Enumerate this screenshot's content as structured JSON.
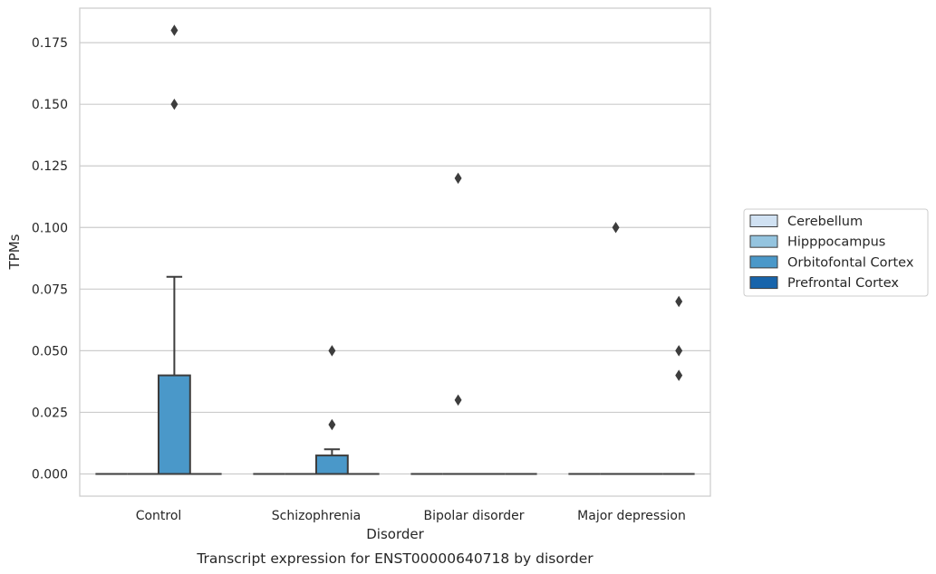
{
  "chart_data": {
    "type": "box",
    "xlabel": "Disorder",
    "ylabel": "TPMs",
    "caption": "Transcript expression for ENST00000640718 by disorder",
    "categories": [
      "Control",
      "Schizophrenia",
      "Bipolar disorder",
      "Major depression"
    ],
    "ylim": [
      -0.009,
      0.189
    ],
    "yticks": [
      0.0,
      0.025,
      0.05,
      0.075,
      0.1,
      0.125,
      0.15,
      0.175
    ],
    "ytick_labels": [
      "0.000",
      "0.025",
      "0.050",
      "0.075",
      "0.100",
      "0.125",
      "0.150",
      "0.175"
    ],
    "grid": true,
    "legend": {
      "placement": "right",
      "entries": [
        {
          "name": "Cerebellum",
          "color": "#d0e1f2"
        },
        {
          "name": "Hipppocampus",
          "color": "#94c4df"
        },
        {
          "name": "Orbitofontal Cortex",
          "color": "#4a98c9"
        },
        {
          "name": "Prefrontal Cortex",
          "color": "#1764ab"
        }
      ]
    },
    "groups": [
      {
        "category": "Control",
        "boxes": [
          {
            "series": "Cerebellum",
            "q1": 0,
            "median": 0,
            "q3": 0,
            "whisker_low": 0,
            "whisker_high": 0,
            "outliers": []
          },
          {
            "series": "Hipppocampus",
            "q1": 0,
            "median": 0,
            "q3": 0,
            "whisker_low": 0,
            "whisker_high": 0,
            "outliers": []
          },
          {
            "series": "Orbitofontal Cortex",
            "q1": 0,
            "median": 0,
            "q3": 0.04,
            "whisker_low": 0,
            "whisker_high": 0.08,
            "outliers": [
              0.15,
              0.18
            ]
          },
          {
            "series": "Prefrontal Cortex",
            "q1": 0,
            "median": 0,
            "q3": 0,
            "whisker_low": 0,
            "whisker_high": 0,
            "outliers": []
          }
        ]
      },
      {
        "category": "Schizophrenia",
        "boxes": [
          {
            "series": "Cerebellum",
            "q1": 0,
            "median": 0,
            "q3": 0,
            "whisker_low": 0,
            "whisker_high": 0,
            "outliers": []
          },
          {
            "series": "Hipppocampus",
            "q1": 0,
            "median": 0,
            "q3": 0,
            "whisker_low": 0,
            "whisker_high": 0,
            "outliers": []
          },
          {
            "series": "Orbitofontal Cortex",
            "q1": 0,
            "median": 0,
            "q3": 0.0075,
            "whisker_low": 0,
            "whisker_high": 0.01,
            "outliers": [
              0.02,
              0.05
            ]
          },
          {
            "series": "Prefrontal Cortex",
            "q1": 0,
            "median": 0,
            "q3": 0,
            "whisker_low": 0,
            "whisker_high": 0,
            "outliers": []
          }
        ]
      },
      {
        "category": "Bipolar disorder",
        "boxes": [
          {
            "series": "Cerebellum",
            "q1": 0,
            "median": 0,
            "q3": 0,
            "whisker_low": 0,
            "whisker_high": 0,
            "outliers": []
          },
          {
            "series": "Hipppocampus",
            "q1": 0,
            "median": 0,
            "q3": 0,
            "whisker_low": 0,
            "whisker_high": 0,
            "outliers": [
              0.03,
              0.12
            ]
          },
          {
            "series": "Orbitofontal Cortex",
            "q1": 0,
            "median": 0,
            "q3": 0,
            "whisker_low": 0,
            "whisker_high": 0,
            "outliers": []
          },
          {
            "series": "Prefrontal Cortex",
            "q1": 0,
            "median": 0,
            "q3": 0,
            "whisker_low": 0,
            "whisker_high": 0,
            "outliers": []
          }
        ]
      },
      {
        "category": "Major depression",
        "boxes": [
          {
            "series": "Cerebellum",
            "q1": 0,
            "median": 0,
            "q3": 0,
            "whisker_low": 0,
            "whisker_high": 0,
            "outliers": []
          },
          {
            "series": "Hipppocampus",
            "q1": 0,
            "median": 0,
            "q3": 0,
            "whisker_low": 0,
            "whisker_high": 0,
            "outliers": [
              0.1
            ]
          },
          {
            "series": "Orbitofontal Cortex",
            "q1": 0,
            "median": 0,
            "q3": 0,
            "whisker_low": 0,
            "whisker_high": 0,
            "outliers": []
          },
          {
            "series": "Prefrontal Cortex",
            "q1": 0,
            "median": 0,
            "q3": 0,
            "whisker_low": 0,
            "whisker_high": 0,
            "outliers": [
              0.04,
              0.05,
              0.07
            ]
          }
        ]
      }
    ]
  }
}
